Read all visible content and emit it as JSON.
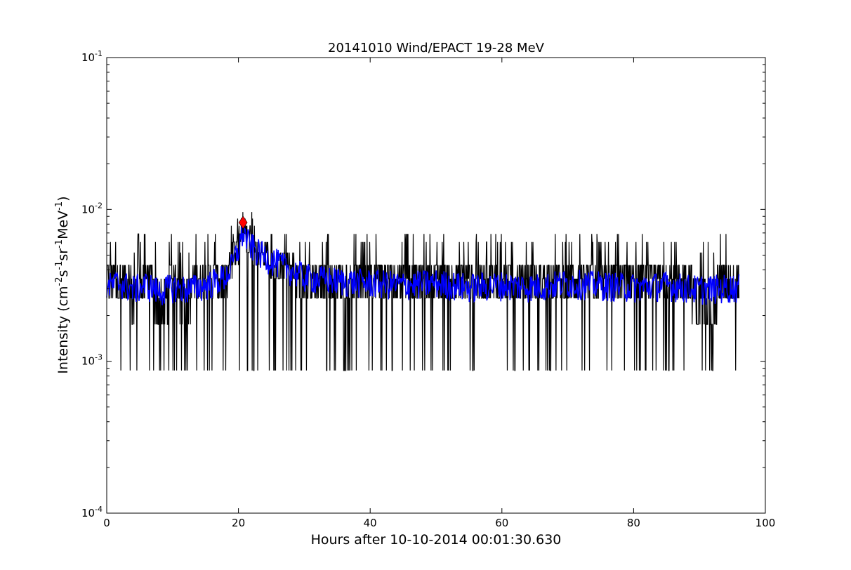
{
  "chart_data": {
    "type": "line",
    "title": "20141010 Wind/EPACT 19-28 MeV",
    "xlabel": "Hours after 10-10-2014 00:01:30.630",
    "ylabel_parts": [
      "Intensity (cm",
      "-2",
      "s",
      "-1",
      "sr",
      "-1",
      "MeV",
      "-1",
      ")"
    ],
    "xlim": [
      0,
      100
    ],
    "ylim": [
      0.0001,
      0.1
    ],
    "yscale": "log",
    "x_ticks": [
      0,
      20,
      40,
      60,
      80,
      100
    ],
    "x_tick_labels": [
      "0",
      "20",
      "40",
      "60",
      "80",
      "100"
    ],
    "y_ticks": [
      0.0001,
      0.001,
      0.01,
      0.1
    ],
    "y_tick_labels": [
      {
        "base": "10",
        "exp": "-4"
      },
      {
        "base": "10",
        "exp": "-3"
      },
      {
        "base": "10",
        "exp": "-2"
      },
      {
        "base": "10",
        "exp": "-1"
      }
    ],
    "grid": false,
    "legend": "none",
    "data_x_range": [
      0,
      96
    ],
    "intensity_levels": [
      0.00087,
      0.00175,
      0.0026,
      0.0035,
      0.0043,
      0.0052,
      0.0061,
      0.0069,
      0.0078,
      0.0087,
      0.0096,
      0.013
    ],
    "raw_series": {
      "color": "#000000",
      "background_level": 0.0032,
      "enhancement": {
        "start": 19.0,
        "peak_x": 20.7,
        "peak_y": 0.0075,
        "decay_end": 30.0
      }
    },
    "smoothed_series": {
      "color": "#0000ff",
      "points": [
        [
          0,
          0.0031
        ],
        [
          2,
          0.0033
        ],
        [
          4,
          0.003
        ],
        [
          6,
          0.0032
        ],
        [
          8,
          0.0029
        ],
        [
          10,
          0.0031
        ],
        [
          12,
          0.003
        ],
        [
          14,
          0.0031
        ],
        [
          16,
          0.0033
        ],
        [
          18,
          0.0036
        ],
        [
          19,
          0.0042
        ],
        [
          20,
          0.0055
        ],
        [
          20.7,
          0.0072
        ],
        [
          21.5,
          0.006
        ],
        [
          23,
          0.0052
        ],
        [
          25,
          0.0047
        ],
        [
          27,
          0.0042
        ],
        [
          30,
          0.0036
        ],
        [
          35,
          0.0034
        ],
        [
          40,
          0.0033
        ],
        [
          45,
          0.0032
        ],
        [
          50,
          0.0033
        ],
        [
          55,
          0.0031
        ],
        [
          60,
          0.0032
        ],
        [
          65,
          0.0031
        ],
        [
          70,
          0.0033
        ],
        [
          75,
          0.0032
        ],
        [
          80,
          0.0031
        ],
        [
          85,
          0.0032
        ],
        [
          90,
          0.003
        ],
        [
          96,
          0.0031
        ]
      ]
    },
    "marker": {
      "x": 20.7,
      "y": 0.0082,
      "color": "#ff0000",
      "shape": "diamond"
    }
  }
}
